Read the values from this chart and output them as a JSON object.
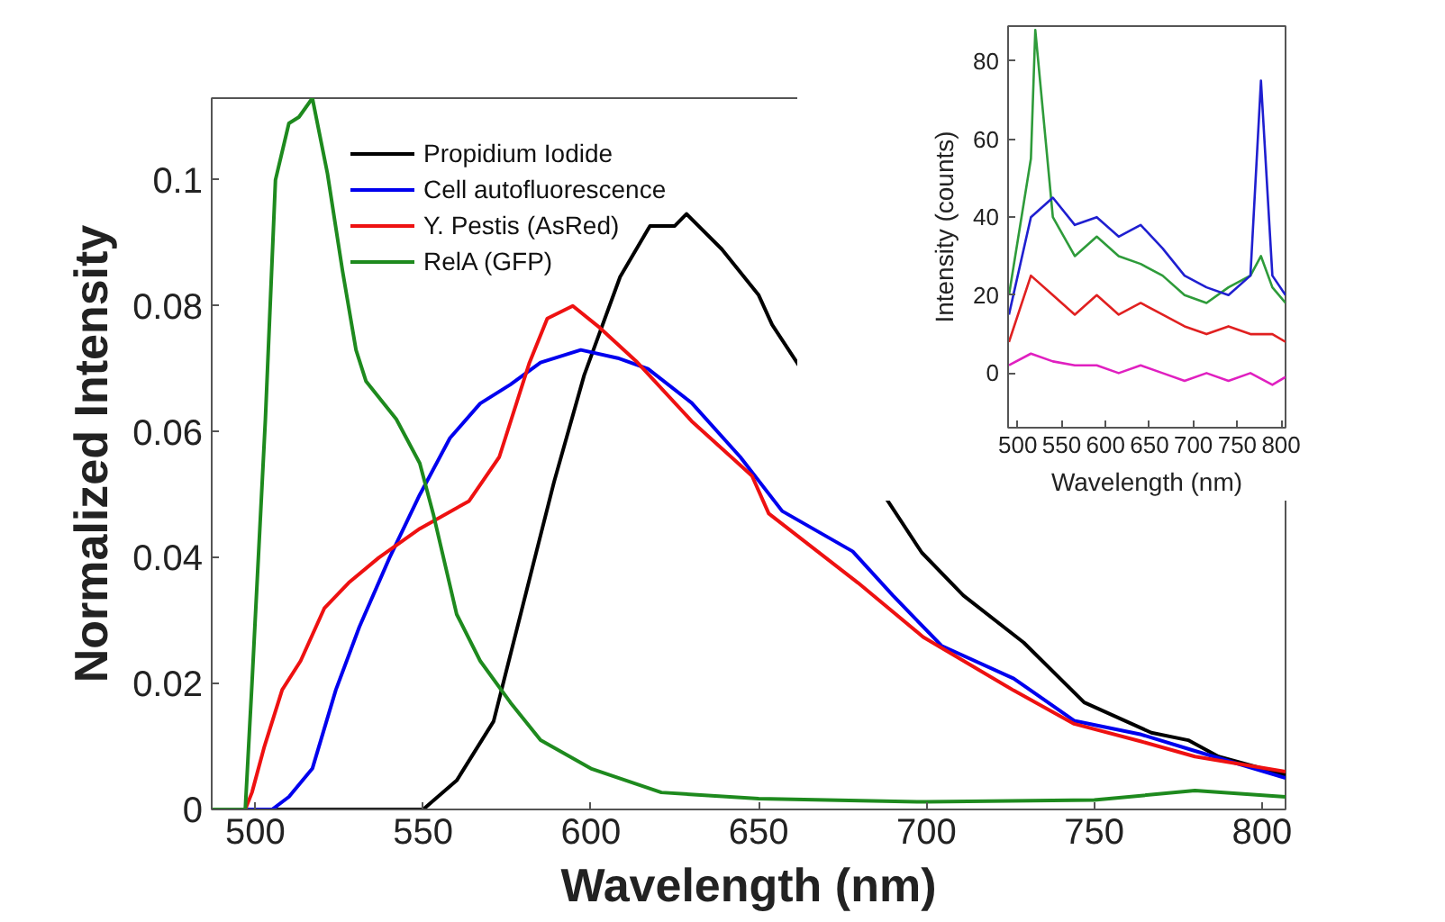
{
  "chart_data": [
    {
      "type": "line",
      "xlabel": "Wavelength (nm)",
      "ylabel": "Normalized Intensity",
      "xlim": [
        487,
        807
      ],
      "ylim": [
        0,
        0.113
      ],
      "xticks": [
        500,
        550,
        600,
        650,
        700,
        750,
        800
      ],
      "yticks": [
        0,
        0.02,
        0.04,
        0.06,
        0.08,
        {
          "value": 0.1,
          "label": "0.1"
        }
      ],
      "grid": false,
      "legend": "top left",
      "line_style": "solid",
      "marker": "none",
      "series": [
        {
          "name": "Propidium Iodide",
          "color": "#000000",
          "x": [
            487,
            550,
            560,
            571,
            580,
            589,
            598,
            608.7,
            617.6,
            625,
            628.5,
            639,
            650,
            654,
            698.6,
            711,
            729,
            747,
            767,
            778,
            787,
            807
          ],
          "values": [
            0,
            0,
            0.0046,
            0.014,
            0.033,
            0.052,
            0.069,
            0.0846,
            0.0927,
            0.0927,
            0.0946,
            0.089,
            0.0817,
            0.077,
            0.0408,
            0.034,
            0.0265,
            0.017,
            0.0122,
            0.011,
            0.0084,
            0.0055
          ]
        },
        {
          "name": "Cell autofluorescence",
          "color": "#0000ee",
          "x": [
            487,
            505,
            510,
            517,
            524,
            531,
            540,
            549,
            558,
            567,
            576,
            585,
            597,
            608,
            617,
            630,
            644.5,
            657,
            678,
            690,
            704.5,
            726,
            744,
            764,
            780,
            807
          ],
          "values": [
            0,
            0,
            0.002,
            0.0065,
            0.019,
            0.029,
            0.04,
            0.05,
            0.059,
            0.0645,
            0.0675,
            0.071,
            0.073,
            0.0717,
            0.07,
            0.0646,
            0.056,
            0.0474,
            0.041,
            0.034,
            0.026,
            0.0208,
            0.0141,
            0.0119,
            0.0093,
            0.005
          ]
        },
        {
          "name": "Y. Pestis (AsRed)",
          "color": "#ee1111",
          "x": [
            487,
            497,
            499,
            502.7,
            508,
            513.5,
            520.6,
            527.8,
            536.8,
            549,
            563.7,
            572.7,
            581.7,
            587,
            594.6,
            602.7,
            613.5,
            630,
            648,
            653,
            679.6,
            699,
            726,
            744,
            764,
            780,
            807
          ],
          "values": [
            0,
            0,
            0.0027,
            0.01,
            0.019,
            0.0236,
            0.032,
            0.036,
            0.04,
            0.0446,
            0.049,
            0.056,
            0.071,
            0.078,
            0.08,
            0.0765,
            0.0712,
            0.0617,
            0.053,
            0.047,
            0.036,
            0.0274,
            0.0189,
            0.0136,
            0.0108,
            0.0084,
            0.006
          ]
        },
        {
          "name": "RelA (GFP)",
          "color": "#1e8a1e",
          "x": [
            487,
            497,
            499,
            503,
            506,
            510,
            513,
            517,
            521.5,
            526,
            530,
            533,
            542,
            549,
            553,
            560,
            567,
            576,
            585,
            600,
            621,
            650,
            700,
            750,
            780,
            807
          ],
          "values": [
            0,
            0,
            0.02,
            0.062,
            0.1,
            0.109,
            0.11,
            0.113,
            0.101,
            0.0855,
            0.073,
            0.068,
            0.062,
            0.055,
            0.047,
            0.031,
            0.0236,
            0.017,
            0.011,
            0.0065,
            0.0027,
            0.0017,
            0.0012,
            0.0015,
            0.003,
            0.002
          ]
        }
      ]
    },
    {
      "type": "line",
      "xlabel": "Wavelength (nm)",
      "ylabel": "Intensity (counts)",
      "xlim": [
        489,
        805
      ],
      "ylim": [
        -14,
        89
      ],
      "xticks": [
        500,
        550,
        600,
        650,
        700,
        750,
        800
      ],
      "yticks": [
        0,
        20,
        40,
        60,
        80
      ],
      "grid": false,
      "legend": false,
      "line_style": "solid",
      "marker": "none",
      "series": [
        {
          "color": "#2e9b3a",
          "x": [
            490,
            515,
            520,
            540,
            565,
            590,
            615,
            640,
            665,
            690,
            715,
            740,
            765,
            777,
            790,
            805
          ],
          "values": [
            20,
            55,
            88,
            40,
            30,
            35,
            30,
            28,
            25,
            20,
            18,
            22,
            25,
            30,
            22,
            18
          ]
        },
        {
          "color": "#1f1fd0",
          "x": [
            490,
            515,
            540,
            565,
            590,
            615,
            640,
            665,
            690,
            715,
            740,
            765,
            777,
            790,
            805
          ],
          "values": [
            15,
            40,
            45,
            38,
            40,
            35,
            38,
            32,
            25,
            22,
            20,
            25,
            75,
            25,
            20
          ]
        },
        {
          "color": "#e02020",
          "x": [
            490,
            515,
            540,
            565,
            590,
            615,
            640,
            665,
            690,
            715,
            740,
            765,
            790,
            805
          ],
          "values": [
            8,
            25,
            20,
            15,
            20,
            15,
            18,
            15,
            12,
            10,
            12,
            10,
            10,
            8
          ]
        },
        {
          "color": "#e020c0",
          "x": [
            490,
            515,
            540,
            565,
            590,
            615,
            640,
            665,
            690,
            715,
            740,
            765,
            790,
            805
          ],
          "values": [
            2,
            5,
            3,
            2,
            2,
            0,
            2,
            0,
            -2,
            0,
            -2,
            0,
            -3,
            -1
          ]
        }
      ]
    }
  ]
}
